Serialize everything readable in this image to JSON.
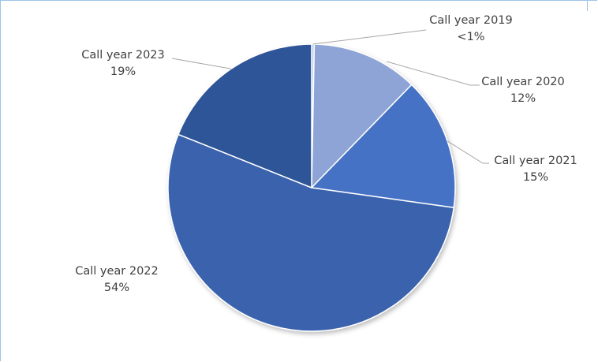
{
  "chart_data": {
    "type": "pie",
    "start_angle_deg": 0,
    "direction": "clockwise",
    "slices": [
      {
        "label": "Call year 2019",
        "value": 0.3,
        "pct_label": "<1%",
        "color": "#b4c7e7"
      },
      {
        "label": "Call year 2020",
        "value": 12,
        "pct_label": "12%",
        "color": "#8fa4d6"
      },
      {
        "label": "Call year 2021",
        "value": 15,
        "pct_label": "15%",
        "color": "#4472c4"
      },
      {
        "label": "Call year 2022",
        "value": 54,
        "pct_label": "54%",
        "color": "#3b64ad"
      },
      {
        "label": "Call year 2023",
        "value": 19,
        "pct_label": "19%",
        "color": "#2f5597"
      }
    ],
    "legend": "none (data labels with leader lines)"
  }
}
